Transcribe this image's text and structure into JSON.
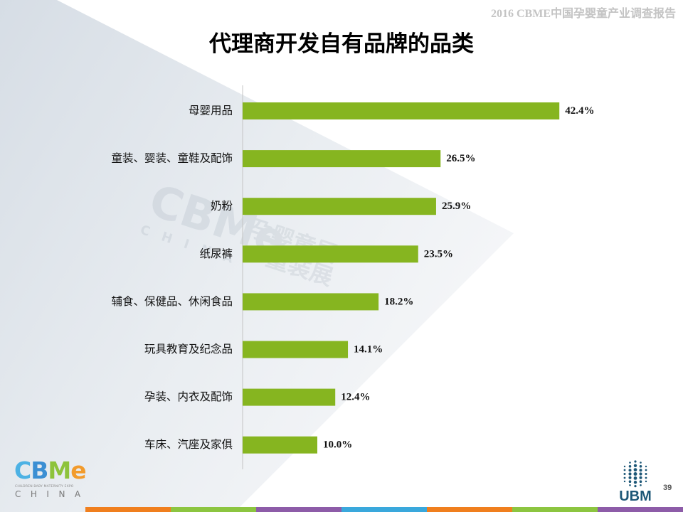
{
  "header": {
    "report_title": "2016 CBME中国孕婴童产业调查报告"
  },
  "slide": {
    "page_number": "39"
  },
  "watermark": {
    "wordmark": "CBMe",
    "subtitle": "CHINA",
    "line1": "孕婴童展",
    "line2": "童装展"
  },
  "logos": {
    "cbme": {
      "letters": [
        "C",
        "B",
        "M",
        "e"
      ],
      "tagline": "CHILDREN BABY MATERNITY EXPO",
      "subtitle": "CHINA"
    },
    "ubm": {
      "wordmark": "UBM"
    }
  },
  "colors": {
    "bar": "#86b520",
    "axis": "#c4c4c4",
    "cbme_letters": [
      "#4db2e4",
      "#3b8fd3",
      "#8dc33b",
      "#f29b2c"
    ],
    "ubm": "#1d5777",
    "footer_stripe": [
      "#f07f1e",
      "#8cc540",
      "#8d5ca8",
      "#3aa8dc",
      "#f07f1e",
      "#8cc540",
      "#8d5ca8"
    ]
  },
  "chart_data": {
    "type": "bar",
    "orientation": "horizontal",
    "title": "代理商开发自有品牌的品类",
    "categories": [
      "母婴用品",
      "童装、婴装、童鞋及配饰",
      "奶粉",
      "纸尿裤",
      "辅食、保健品、休闲食品",
      "玩具教育及纪念品",
      "孕装、内衣及配饰",
      "车床、汽座及家俱"
    ],
    "values": [
      42.4,
      26.5,
      25.9,
      23.5,
      18.2,
      14.1,
      12.4,
      10.0
    ],
    "value_labels": [
      "42.4%",
      "26.5%",
      "25.9%",
      "23.5%",
      "18.2%",
      "14.1%",
      "12.4%",
      "10.0%"
    ],
    "xlabel": "",
    "ylabel": "",
    "grid": false
  }
}
